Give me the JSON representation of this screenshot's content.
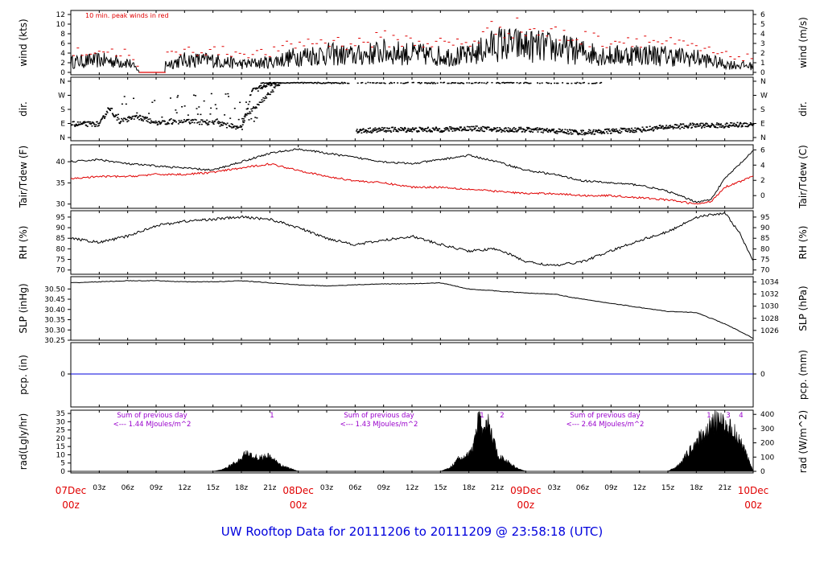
{
  "title": "UW Rooftop Data for 20111206  to  20111209 @ 23:58:18  (UTC)",
  "colors": {
    "axis": "#000000",
    "red": "#e00000",
    "blue": "#0000dd",
    "purple": "#9900cc"
  },
  "x_ticks": {
    "minor": [
      "03z",
      "06z",
      "09z",
      "12z",
      "15z",
      "18z",
      "21z",
      "03z",
      "06z",
      "09z",
      "12z",
      "15z",
      "18z",
      "21z",
      "03z",
      "06z",
      "09z",
      "12z",
      "15z",
      "18z",
      "21z"
    ],
    "days": [
      {
        "date": "07Dec",
        "z": "00z"
      },
      {
        "date": "08Dec",
        "z": "00z"
      },
      {
        "date": "09Dec",
        "z": "00z"
      },
      {
        "date": "10Dec",
        "z": "00z"
      }
    ]
  },
  "chart_data": [
    {
      "type": "line",
      "panel": "wind",
      "ylabel_left": "wind (kts)",
      "ylabel_right": "wind (m/s)",
      "ylim": [
        0,
        12
      ],
      "yticks_left": [
        "0",
        "2",
        "4",
        "6",
        "8",
        "10",
        "12"
      ],
      "yticks_right": [
        "0",
        "1",
        "2",
        "3",
        "4",
        "5",
        "6"
      ],
      "annotation": "10 min. peak winds in red",
      "x_hours": [
        0,
        3,
        6,
        7.5,
        9,
        10,
        12,
        15,
        18,
        21,
        24,
        27,
        30,
        33,
        36,
        39,
        42,
        45,
        48,
        51,
        54,
        57,
        60,
        63,
        66,
        69,
        72
      ],
      "series": [
        {
          "color": "#000000",
          "values": [
            2.5,
            3,
            2.5,
            0,
            0,
            2,
            3,
            3,
            2,
            2.5,
            4,
            4.5,
            4,
            5,
            4.5,
            4,
            4,
            7,
            6.5,
            6,
            5,
            4,
            4.5,
            4,
            3.5,
            2,
            1.5
          ]
        },
        {
          "color": "#e00000",
          "values": [
            4,
            4.5,
            4,
            0,
            0,
            3.5,
            4.5,
            4.5,
            4,
            4,
            6,
            6.5,
            6,
            7,
            6.5,
            6,
            6,
            9.5,
            9,
            8,
            7,
            6.5,
            7,
            6,
            5,
            3.5,
            3
          ]
        }
      ]
    },
    {
      "type": "scatter",
      "panel": "dir",
      "ylabel_left": "dir.",
      "ylabel_right": "dir.",
      "yticks": [
        "N",
        "E",
        "S",
        "W",
        "N"
      ],
      "series": [
        {
          "name": "direction",
          "points": [
            [
              0,
              1
            ],
            [
              3,
              1
            ],
            [
              4,
              2.2
            ],
            [
              5,
              1.2
            ],
            [
              7,
              1.5
            ],
            [
              9,
              1.1
            ],
            [
              12,
              1.2
            ],
            [
              15,
              1.1
            ],
            [
              18,
              0.7
            ],
            [
              19,
              3.3
            ],
            [
              21,
              3.9
            ],
            [
              24,
              3.9
            ],
            [
              27,
              3.9
            ],
            [
              30,
              0.5
            ],
            [
              33,
              0.6
            ],
            [
              36,
              0.6
            ],
            [
              39,
              0.6
            ],
            [
              42,
              0.7
            ],
            [
              45,
              0.6
            ],
            [
              48,
              0.6
            ],
            [
              51,
              0.5
            ],
            [
              54,
              0.4
            ],
            [
              57,
              0.5
            ],
            [
              60,
              0.6
            ],
            [
              63,
              0.8
            ],
            [
              66,
              0.9
            ],
            [
              69,
              0.9
            ],
            [
              72,
              1.0
            ]
          ]
        },
        {
          "name": "north-band",
          "points": [
            [
              30,
              3.9
            ],
            [
              33,
              3.9
            ],
            [
              36,
              3.95
            ],
            [
              39,
              3.95
            ],
            [
              45,
              3.9
            ],
            [
              51,
              3.9
            ],
            [
              54,
              3.9
            ]
          ]
        }
      ]
    },
    {
      "type": "line",
      "panel": "temperature",
      "ylabel_left": "Tair/Tdew (F)",
      "ylabel_right": "Tair/Tdew (C)",
      "ylim": [
        29,
        44
      ],
      "yticks_left": [
        "30",
        "35",
        "40"
      ],
      "yticks_right": [
        "0",
        "2",
        "4",
        "6"
      ],
      "x_hours": [
        0,
        3,
        6,
        9,
        12,
        15,
        18,
        21,
        24,
        27,
        30,
        33,
        36,
        39,
        42,
        45,
        48,
        51,
        54,
        57,
        60,
        63,
        66,
        67.5,
        69,
        72
      ],
      "series": [
        {
          "name": "Tair",
          "color": "#000000",
          "values": [
            40,
            40.5,
            39.5,
            39,
            38.5,
            38,
            40,
            42,
            43,
            42,
            41,
            40,
            39.5,
            40.5,
            41.5,
            40,
            38,
            37,
            35.5,
            35,
            34.5,
            33,
            30.5,
            31,
            36,
            42.5
          ]
        },
        {
          "name": "Tdew",
          "color": "#e00000",
          "values": [
            36,
            36.5,
            36.5,
            37,
            37,
            37.5,
            38.5,
            39.5,
            38,
            36.5,
            35.5,
            35,
            34,
            34,
            33.5,
            33,
            32.5,
            32.5,
            32,
            32,
            31.5,
            31,
            30,
            30.5,
            34,
            36.5
          ]
        }
      ]
    },
    {
      "type": "line",
      "panel": "rh",
      "ylabel_left": "RH (%)",
      "ylabel_right": "RH (%)",
      "ylim": [
        68,
        98
      ],
      "yticks": [
        "70",
        "75",
        "80",
        "85",
        "90",
        "95"
      ],
      "x_hours": [
        0,
        3,
        6,
        9,
        12,
        15,
        18,
        21,
        24,
        27,
        30,
        33,
        36,
        39,
        42,
        45,
        48,
        51,
        54,
        57,
        60,
        63,
        66,
        69,
        70.5,
        72
      ],
      "series": [
        {
          "name": "RH",
          "color": "#000000",
          "values": [
            85,
            83,
            86,
            91,
            93,
            94,
            95,
            94,
            90,
            85,
            82,
            84,
            86,
            82,
            79,
            80,
            74,
            72,
            74,
            79,
            84,
            88,
            95,
            97,
            88,
            74
          ]
        }
      ]
    },
    {
      "type": "line",
      "panel": "slp",
      "ylabel_left": "SLP (inHg)",
      "ylabel_right": "SLP (hPa)",
      "ylim": [
        30.25,
        30.56
      ],
      "yticks_left": [
        "30.25",
        "30.30",
        "30.35",
        "30.40",
        "30.45",
        "30.50"
      ],
      "yticks_right": [
        "1026",
        "1028",
        "1030",
        "1032",
        "1034"
      ],
      "x_hours": [
        0,
        3,
        6,
        9,
        12,
        15,
        18,
        21,
        24,
        27,
        30,
        33,
        36,
        39,
        42,
        45,
        48,
        51,
        54,
        57,
        60,
        63,
        66,
        69,
        72
      ],
      "series": [
        {
          "name": "SLP",
          "color": "#000000",
          "values": [
            30.53,
            30.535,
            30.54,
            30.54,
            30.535,
            30.535,
            30.54,
            30.53,
            30.52,
            30.515,
            30.52,
            30.525,
            30.525,
            30.53,
            30.5,
            30.49,
            30.48,
            30.475,
            30.45,
            30.43,
            30.41,
            30.39,
            30.385,
            30.33,
            30.26
          ]
        }
      ]
    },
    {
      "type": "line",
      "panel": "pcp",
      "ylabel_left": "pcp. (in)",
      "ylabel_right": "pcp. (mm)",
      "yticks_left": [
        "0"
      ],
      "yticks_right": [
        "0"
      ],
      "series": [
        {
          "name": "precipitation",
          "color": "#0000dd",
          "x_hours": [
            0,
            72
          ],
          "values": [
            0,
            0
          ]
        }
      ]
    },
    {
      "type": "area",
      "panel": "rad",
      "ylabel_left": "rad(Lgly/hr)",
      "ylabel_right": "rad (W/m^2)",
      "ylim": [
        0,
        36
      ],
      "yticks_left": [
        "0",
        "5",
        "10",
        "15",
        "20",
        "25",
        "30",
        "35"
      ],
      "yticks_right": [
        "0",
        "100",
        "200",
        "300",
        "400"
      ],
      "x_hours": [
        0,
        15,
        16,
        17,
        18,
        18.5,
        19,
        20,
        21,
        22,
        23,
        24,
        39,
        40,
        41,
        42,
        42.5,
        43,
        43.5,
        44,
        45,
        46,
        47,
        48,
        63,
        64,
        65,
        66,
        67,
        68,
        69,
        70,
        71,
        72
      ],
      "values": [
        0,
        0,
        1,
        4,
        7,
        12,
        9,
        8,
        9,
        4,
        2,
        0,
        0,
        2,
        8,
        10,
        14,
        34,
        20,
        30,
        10,
        6,
        2,
        0,
        0,
        3,
        10,
        18,
        24,
        30,
        28,
        24,
        14,
        0
      ],
      "annotations": [
        {
          "text": "Sum of previous day",
          "sub": "<--- 1.44 MJoules/m^2"
        },
        {
          "text": "Sum of previous day",
          "sub": "<--- 1.43 MJoules/m^2"
        },
        {
          "text": "Sum of previous day",
          "sub": "<--- 2.64 MJoules/m^2"
        }
      ],
      "markers": [
        "1",
        "1",
        "2",
        "1",
        "3",
        "4"
      ]
    }
  ]
}
